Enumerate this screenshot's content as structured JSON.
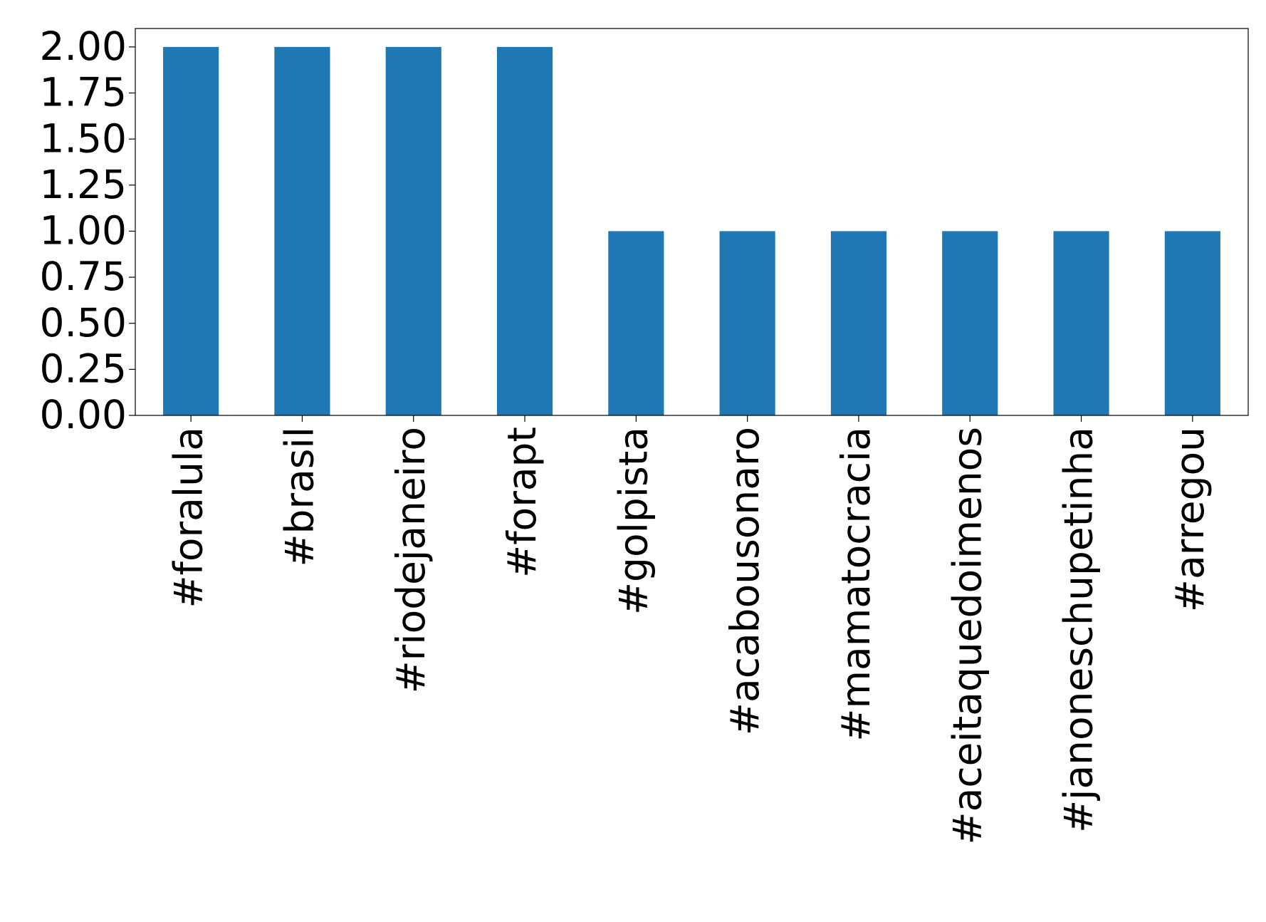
{
  "chart_data": {
    "type": "bar",
    "categories": [
      "#foralula",
      "#brasil",
      "#riodejaneiro",
      "#forapt",
      "#golpista",
      "#acabousonaro",
      "#mamatocracia",
      "#aceitaquedoimenos",
      "#janoneschupetinha",
      "#arregou"
    ],
    "values": [
      2,
      2,
      2,
      2,
      1,
      1,
      1,
      1,
      1,
      1
    ],
    "color": "#1f77b4",
    "ylim": [
      0,
      2.1
    ],
    "yticks": [
      {
        "value": 0,
        "label": "0.00"
      },
      {
        "value": 0.25,
        "label": "0.25"
      },
      {
        "value": 0.5,
        "label": "0.50"
      },
      {
        "value": 0.75,
        "label": "0.75"
      },
      {
        "value": 1,
        "label": "1.00"
      },
      {
        "value": 1.25,
        "label": "1.25"
      },
      {
        "value": 1.5,
        "label": "1.50"
      },
      {
        "value": 1.75,
        "label": "1.75"
      },
      {
        "value": 2,
        "label": "2.00"
      }
    ],
    "grid": false
  }
}
